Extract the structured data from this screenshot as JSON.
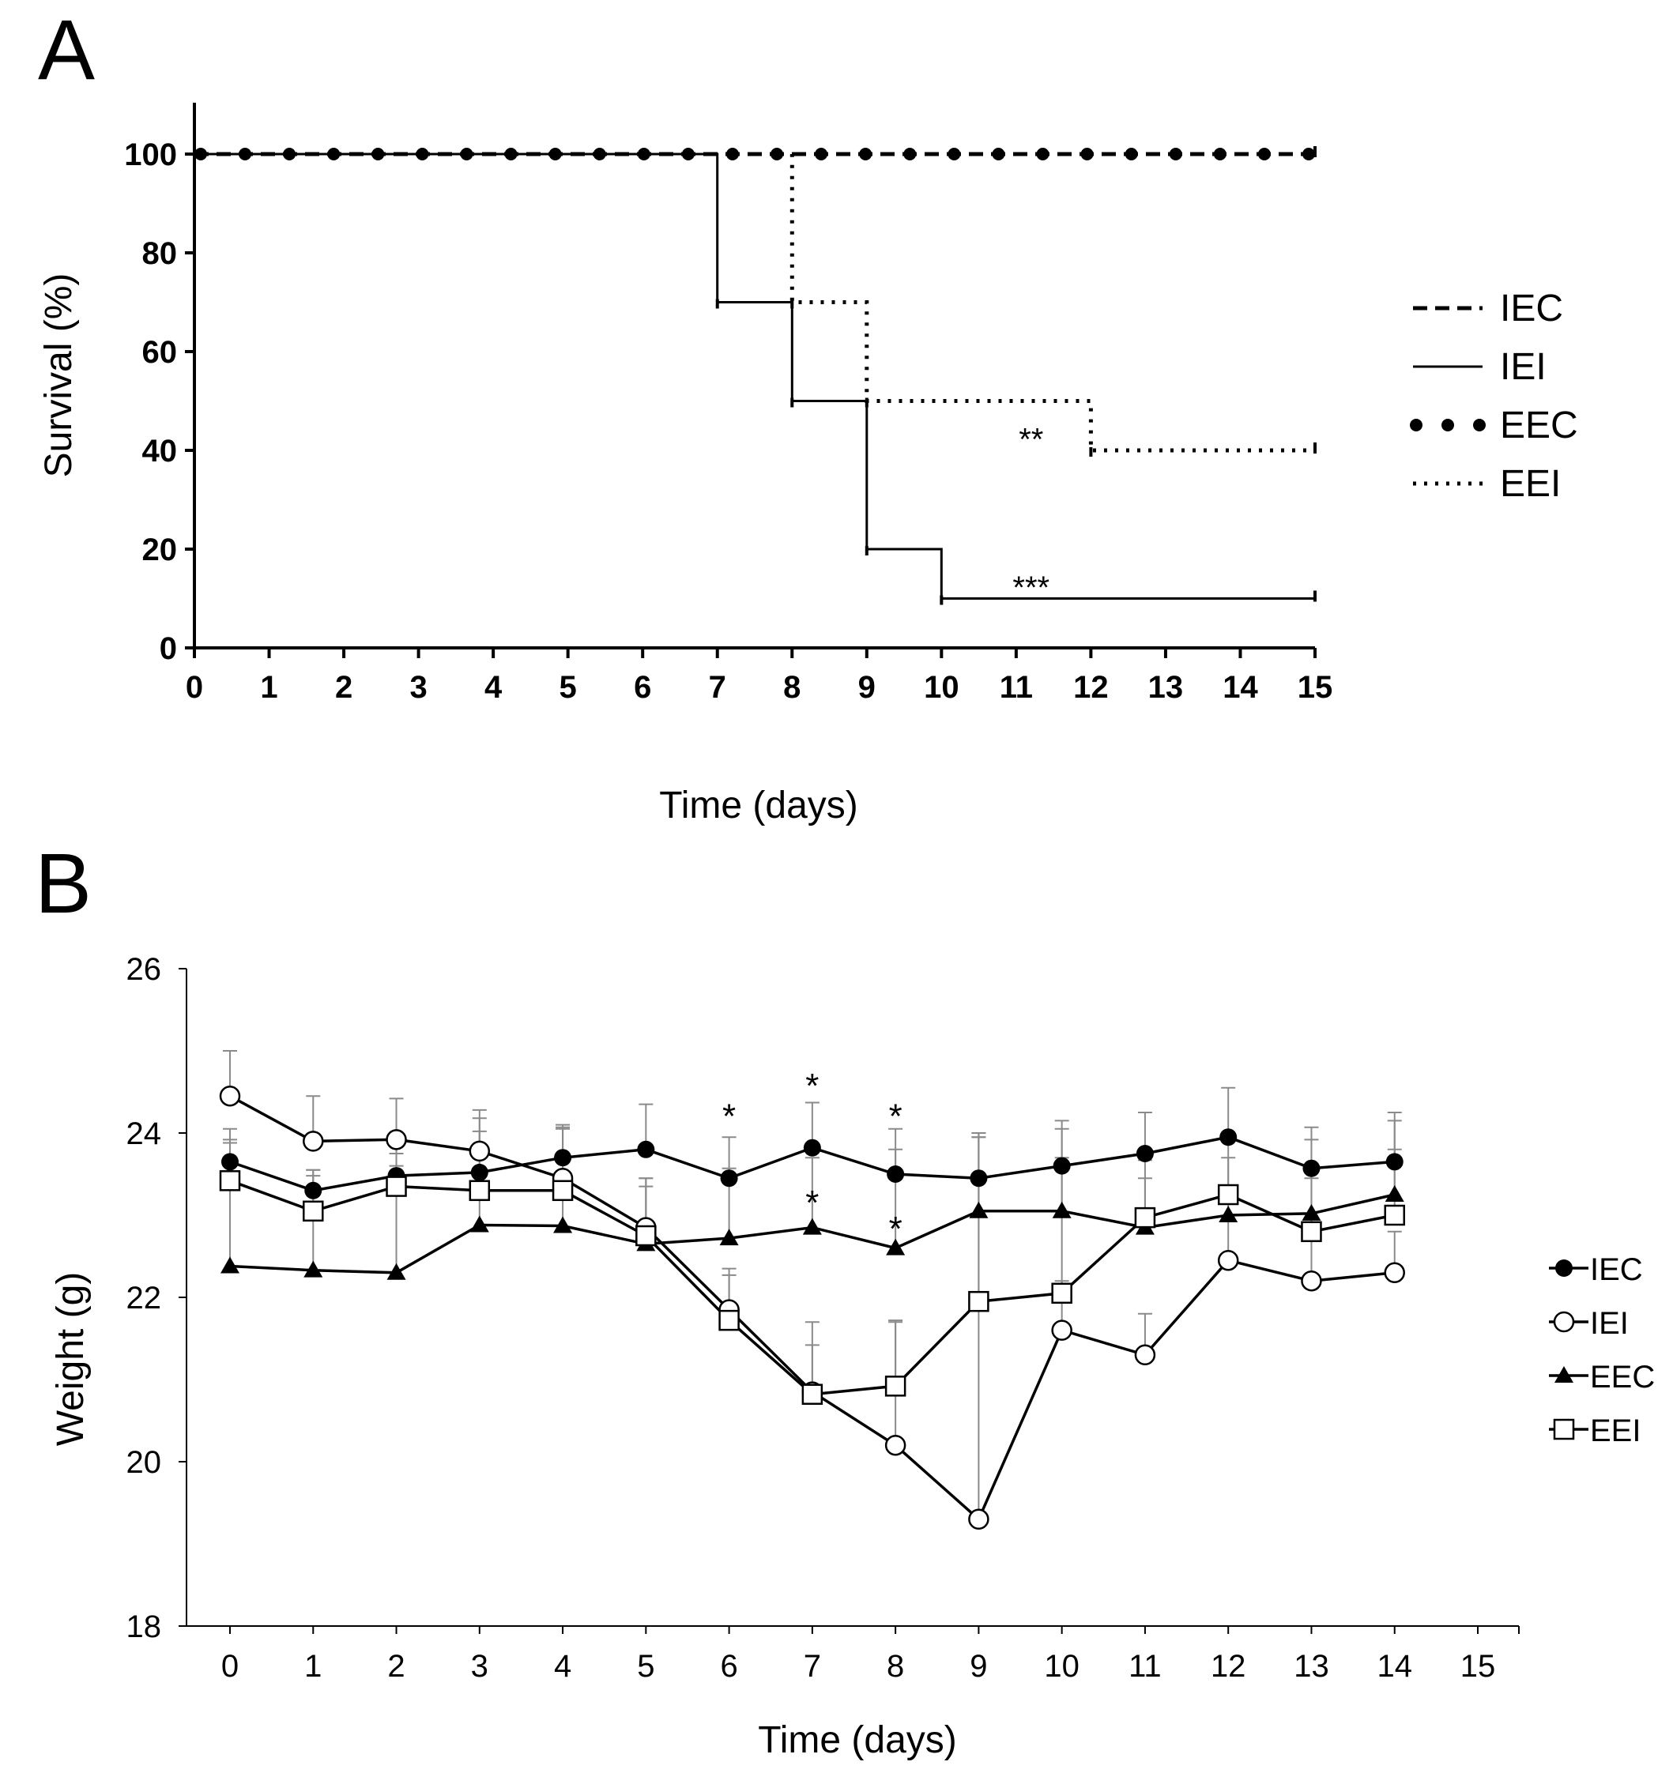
{
  "panel_a_letter": "A",
  "panel_b_letter": "B",
  "chart_data": [
    {
      "type": "line",
      "panel": "A",
      "step": true,
      "xlabel": "Time (days)",
      "ylabel": "Survival (%)",
      "xlim": [
        0,
        15
      ],
      "ylim": [
        0,
        100
      ],
      "x_ticks": [
        "0",
        "1",
        "2",
        "3",
        "4",
        "5",
        "6",
        "7",
        "8",
        "9",
        "10",
        "11",
        "12",
        "13",
        "14",
        "15"
      ],
      "y_ticks": [
        "0",
        "20",
        "40",
        "60",
        "80",
        "100"
      ],
      "legend_position": "right",
      "series": [
        {
          "name": "IEC",
          "style": "dashed",
          "points": [
            [
              0,
              100
            ],
            [
              15,
              100
            ]
          ]
        },
        {
          "name": "IEI",
          "style": "solid",
          "points": [
            [
              0,
              100
            ],
            [
              7,
              100
            ],
            [
              7,
              70
            ],
            [
              8,
              70
            ],
            [
              8,
              50
            ],
            [
              9,
              50
            ],
            [
              9,
              20
            ],
            [
              10,
              20
            ],
            [
              10,
              10
            ],
            [
              15,
              10
            ]
          ]
        },
        {
          "name": "EEC",
          "style": "dots",
          "points": [
            [
              0,
              100
            ],
            [
              15,
              100
            ]
          ]
        },
        {
          "name": "EEI",
          "style": "dotted",
          "points": [
            [
              0,
              100
            ],
            [
              8,
              100
            ],
            [
              8,
              70
            ],
            [
              9,
              70
            ],
            [
              9,
              50
            ],
            [
              12,
              50
            ],
            [
              12,
              40
            ],
            [
              15,
              40
            ]
          ]
        }
      ],
      "annotations": [
        {
          "text": "**",
          "x": 11.2,
          "y": 43
        },
        {
          "text": "***",
          "x": 11.2,
          "y": 13
        }
      ]
    },
    {
      "type": "line",
      "panel": "B",
      "xlabel": "Time (days)",
      "ylabel": "Weight (g)",
      "xlim": [
        -0.5,
        15.5
      ],
      "ylim": [
        18,
        26
      ],
      "x_ticks": [
        "0",
        "1",
        "2",
        "3",
        "4",
        "5",
        "6",
        "7",
        "8",
        "9",
        "10",
        "11",
        "12",
        "13",
        "14",
        "15"
      ],
      "y_ticks": [
        "18",
        "20",
        "22",
        "24",
        "26"
      ],
      "legend_position": "right",
      "x": [
        0,
        1,
        2,
        3,
        4,
        5,
        6,
        7,
        8,
        9,
        10,
        11,
        12,
        13,
        14
      ],
      "series": [
        {
          "name": "IEC",
          "marker": "filled-circle",
          "values": [
            23.65,
            23.3,
            23.48,
            23.52,
            23.7,
            23.8,
            23.45,
            23.82,
            23.5,
            23.45,
            23.6,
            23.75,
            23.95,
            23.57,
            23.65
          ],
          "error": [
            0.4,
            0.25,
            0.4,
            0.5,
            0.4,
            0.55,
            0.5,
            0.55,
            0.55,
            0.55,
            0.55,
            0.5,
            0.6,
            0.5,
            0.6
          ]
        },
        {
          "name": "IEI",
          "marker": "open-circle",
          "values": [
            24.45,
            23.9,
            23.92,
            23.78,
            23.45,
            22.85,
            21.85,
            20.85,
            20.2,
            19.3,
            21.6,
            21.3,
            22.45,
            22.2,
            22.3
          ],
          "error": [
            0.55,
            0.55,
            0.5,
            0.5,
            0.6,
            0.6,
            0.5,
            0.85,
            1.5,
            4.7,
            0.6,
            0.5,
            0.5,
            0.5,
            0.5
          ]
        },
        {
          "name": "EEC",
          "marker": "filled-triangle",
          "values": [
            22.38,
            22.33,
            22.3,
            22.88,
            22.87,
            22.65,
            22.72,
            22.85,
            22.6,
            23.05,
            23.05,
            22.85,
            23.0,
            23.02,
            23.25
          ],
          "error": [
            1.5,
            1.15,
            1.3,
            1.3,
            1.2,
            0.8,
            0.85,
            0.85,
            1.2,
            0.9,
            1.0,
            0.6,
            0.7,
            0.9,
            0.9
          ]
        },
        {
          "name": "EEI",
          "marker": "open-square",
          "values": [
            23.42,
            23.05,
            23.35,
            23.3,
            23.3,
            22.75,
            21.72,
            20.82,
            20.92,
            21.95,
            22.05,
            22.97,
            23.25,
            22.8,
            23.0
          ],
          "error": [
            0.5,
            0.5,
            0.4,
            0.5,
            0.45,
            0.6,
            0.55,
            0.6,
            0.8,
            2.0,
            1.65,
            0.7,
            0.7,
            0.65,
            0.8
          ]
        }
      ],
      "annotations": [
        {
          "text": "*",
          "x": 6,
          "y": 24.35
        },
        {
          "text": "*",
          "x": 7,
          "y": 24.72
        },
        {
          "text": "*",
          "x": 8,
          "y": 24.35
        },
        {
          "text": "*",
          "x": 7,
          "y": 23.3
        },
        {
          "text": "*",
          "x": 8,
          "y": 22.98
        }
      ]
    }
  ]
}
